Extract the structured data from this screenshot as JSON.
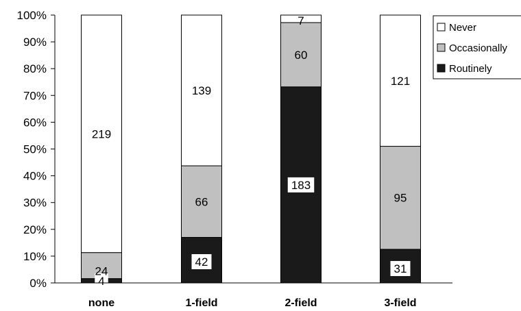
{
  "chart_data": {
    "type": "bar",
    "stacked": "percent",
    "categories": [
      "none",
      "1-field",
      "2-field",
      "3-field"
    ],
    "series": [
      {
        "name": "Routinely",
        "values": [
          4,
          42,
          183,
          31
        ],
        "color": "#1a1a1a"
      },
      {
        "name": "Occasionally",
        "values": [
          24,
          66,
          60,
          95
        ],
        "color": "#c0c0c0"
      },
      {
        "name": "Never",
        "values": [
          219,
          139,
          7,
          121
        ],
        "color": "#ffffff"
      }
    ],
    "legend_order": [
      "Never",
      "Occasionally",
      "Routinely"
    ],
    "y_ticks": [
      "0%",
      "10%",
      "20%",
      "30%",
      "40%",
      "50%",
      "60%",
      "70%",
      "80%",
      "90%",
      "100%"
    ],
    "ylim": [
      0,
      100
    ],
    "legend_position": "top-right",
    "grid": false,
    "title": "",
    "xlabel": "",
    "ylabel": ""
  }
}
